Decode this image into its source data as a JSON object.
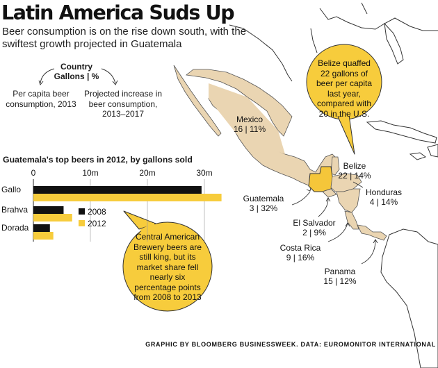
{
  "header": {
    "title": "Latin America Suds Up",
    "subtitle": "Beer consumption is on the rise down south, with the swiftest growth projected in Guatemala"
  },
  "legend": {
    "title": "Country\nGallons | %",
    "left_label": "Per capita beer consumption, 2013",
    "right_label": "Projected increase in beer consumption, 2013–2017"
  },
  "countries": [
    {
      "name": "Mexico",
      "stats": "16 | 11%"
    },
    {
      "name": "Belize",
      "stats": "22 | 14%"
    },
    {
      "name": "Honduras",
      "stats": "4 | 14%"
    },
    {
      "name": "Guatemala",
      "stats": "3 | 32%"
    },
    {
      "name": "El Salvador",
      "stats": "2 | 9%"
    },
    {
      "name": "Costa Rica",
      "stats": "9 | 16%"
    },
    {
      "name": "Panama",
      "stats": "15 | 12%"
    }
  ],
  "callouts": {
    "belize": "Belize quaffed 22 gallons of beer per capita last year, compared with 20 in the U.S.",
    "cab": "Central American Brewery beers are still king, but its market share fell nearly six percentage points from 2008 to 2013"
  },
  "colors": {
    "accent": "#f7cc3c",
    "land": "#ead5b2",
    "guatemala": "#f5c63a",
    "bar_2008": "#111111",
    "bar_2012": "#f7cc3c",
    "outline": "#2a2a2a"
  },
  "chart_data": {
    "type": "bar",
    "title": "Guatemala's top beers in 2012, by gallons sold",
    "orientation": "horizontal",
    "categories": [
      "Gallo",
      "Brahva",
      "Dorada"
    ],
    "series": [
      {
        "name": "2008",
        "values": [
          29.5,
          5.3,
          2.9
        ]
      },
      {
        "name": "2012",
        "values": [
          33.0,
          6.8,
          3.5
        ]
      }
    ],
    "xticks": [
      0,
      10,
      20,
      30
    ],
    "xtick_labels": [
      "0",
      "10m",
      "20m",
      "30m"
    ],
    "xlim": [
      0,
      33
    ],
    "xlabel": "",
    "ylabel": "",
    "legend": [
      "2008",
      "2012"
    ],
    "grid": true
  },
  "footer": "GRAPHIC BY BLOOMBERG BUSINESSWEEK. DATA: EUROMONITOR INTERNATIONAL"
}
